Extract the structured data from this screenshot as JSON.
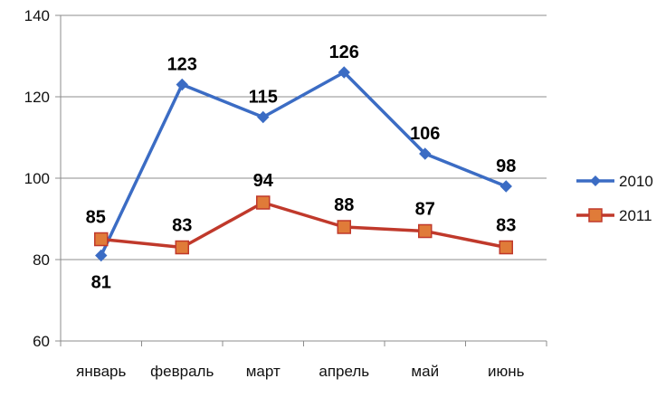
{
  "chart_data": {
    "type": "line",
    "categories": [
      "январь",
      "февраль",
      "март",
      "апрель",
      "май",
      "июнь"
    ],
    "series": [
      {
        "name": "2010",
        "values": [
          81,
          123,
          115,
          126,
          106,
          98
        ],
        "color": "#3B6CC4",
        "marker": "diamond"
      },
      {
        "name": "2011",
        "values": [
          85,
          83,
          94,
          88,
          87,
          83
        ],
        "color": "#C0392B",
        "marker_fill": "#E07B39",
        "marker": "square"
      }
    ],
    "yticks": [
      "60",
      "80",
      "100",
      "120",
      "140"
    ],
    "ylim": [
      60,
      140
    ],
    "grid": true,
    "legend_position": "right",
    "data_labels": true
  }
}
